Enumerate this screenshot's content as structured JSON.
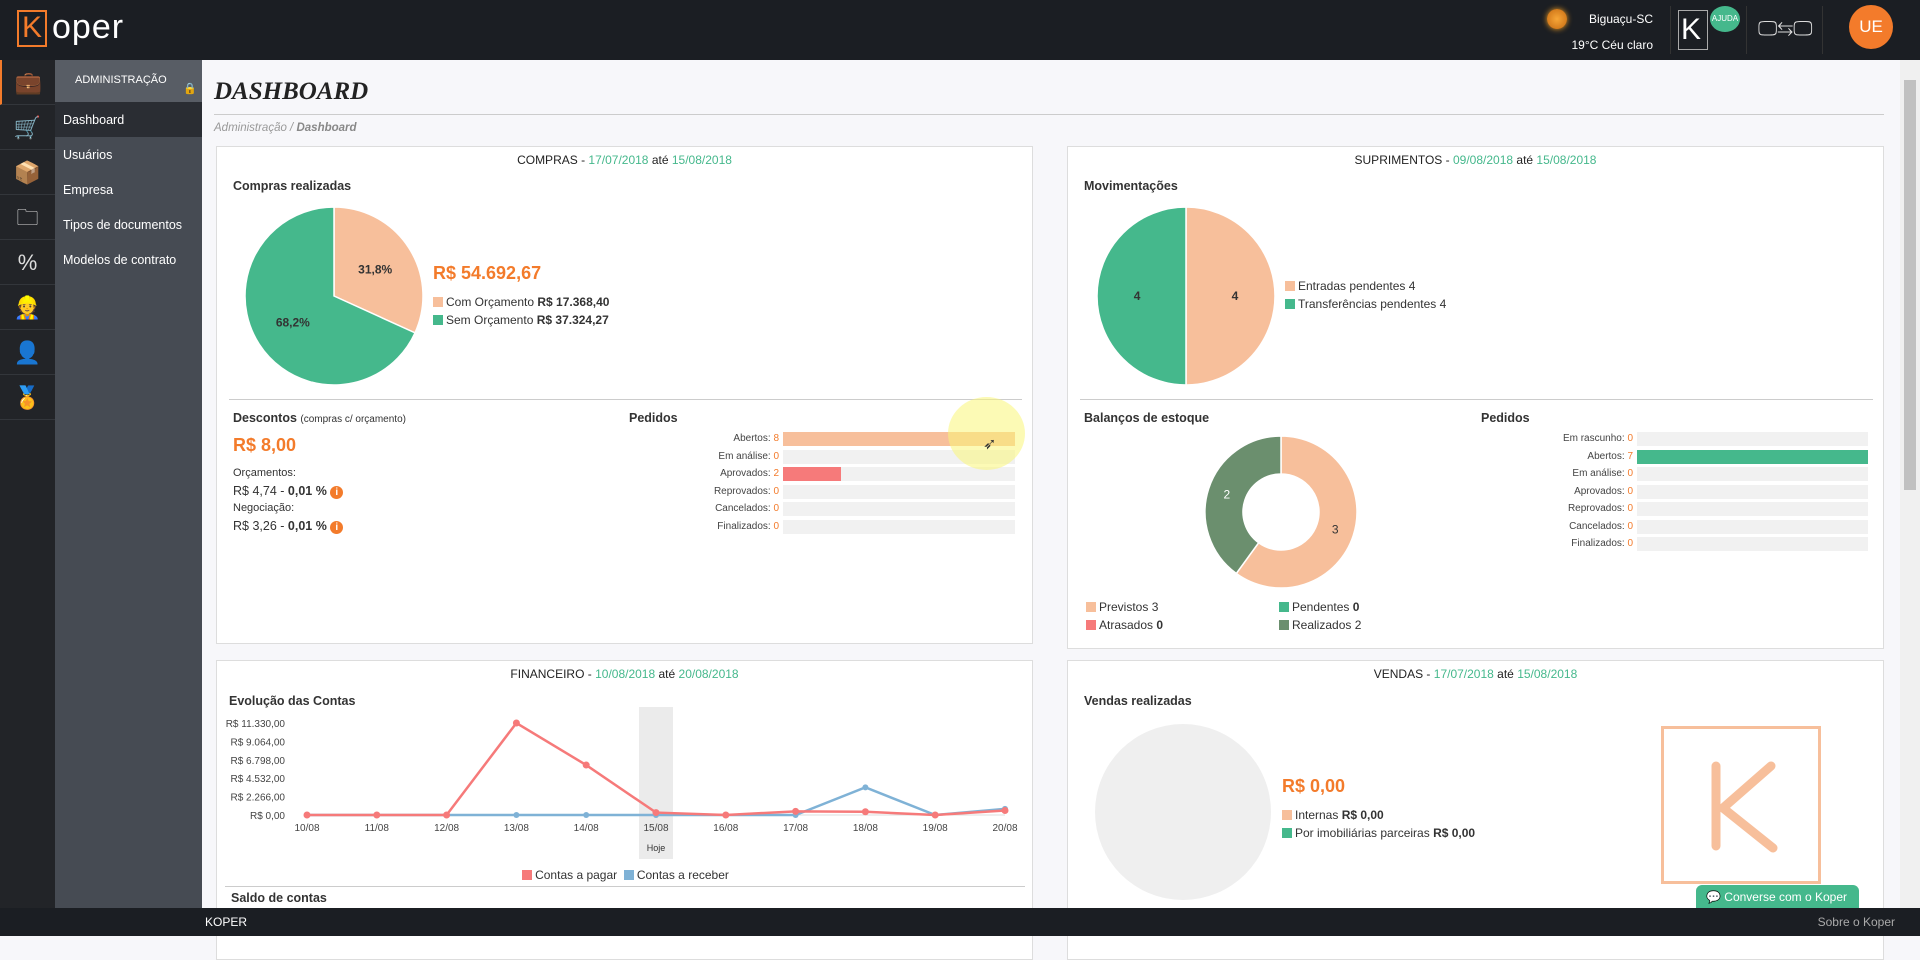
{
  "header": {
    "logo_letter": "K",
    "logo_rest": "oper",
    "city": "Biguaçu-SC",
    "weather": "19°C Céu claro",
    "help_badge": "AJUDA",
    "help_letter": "K",
    "avatar_initials": "UE",
    "icons": [
      "weather-sun-icon",
      "help-icon",
      "screens-icon"
    ]
  },
  "rail": {
    "items": [
      "briefcase-icon",
      "cart-icon",
      "box-icon",
      "folder-money-icon",
      "percent-icon",
      "worker-gear-icon",
      "user-lock-icon",
      "award-ribbon-icon"
    ]
  },
  "submenu": {
    "header": "ADMINISTRAÇÃO",
    "items": [
      {
        "label": "Dashboard",
        "active": true
      },
      {
        "label": "Usuários"
      },
      {
        "label": "Empresa"
      },
      {
        "label": "Tipos de documentos"
      },
      {
        "label": "Modelos de contrato"
      }
    ]
  },
  "page": {
    "title": "DASHBOARD",
    "breadcrumb_parent": "Administração /",
    "breadcrumb_current": "Dashboard"
  },
  "colors": {
    "orange": "#f37b2b",
    "green": "#45b88c",
    "peach": "#f7bf9b",
    "red": "#f67a7a",
    "darkgreen": "#6b8f6e",
    "blue": "#7fb2d6",
    "gray": "#efefef"
  },
  "compras": {
    "title": "COMPRAS -",
    "from": "17/07/2018",
    "ate": "até",
    "to": "15/08/2018",
    "section": "Compras realizadas",
    "total": "R$ 54.692,67",
    "legend": [
      {
        "label": "Com Orçamento",
        "value": "R$ 17.368,40",
        "pct": "31,8%",
        "share": 31.8
      },
      {
        "label": "Sem Orçamento",
        "value": "R$ 37.324,27",
        "pct": "68,2%",
        "share": 68.2
      }
    ],
    "descontos_title": "Descontos",
    "descontos_sub": "(compras c/ orçamento)",
    "descontos_value": "R$ 8,00",
    "orcamentos_label": "Orçamentos:",
    "orcamentos_value": "R$ 4,74 - ",
    "orcamentos_pct": "0,01 %",
    "negociacao_label": "Negociação:",
    "negociacao_value": "R$ 3,26 - ",
    "negociacao_pct": "0,01 %",
    "pedidos_title": "Pedidos",
    "pedidos_max": 8,
    "pedidos": [
      {
        "label": "Abertos:",
        "value": "8",
        "n": 8,
        "color": "#f7bf9b"
      },
      {
        "label": "Em análise:",
        "value": "0",
        "n": 0
      },
      {
        "label": "Aprovados:",
        "value": "2",
        "n": 2,
        "color": "#f67a7a"
      },
      {
        "label": "Reprovados:",
        "value": "0",
        "n": 0
      },
      {
        "label": "Cancelados:",
        "value": "0",
        "n": 0
      },
      {
        "label": "Finalizados:",
        "value": "0",
        "n": 0
      }
    ]
  },
  "suprimentos": {
    "title": "SUPRIMENTOS -",
    "from": "09/08/2018",
    "ate": "até",
    "to": "15/08/2018",
    "section": "Movimentações",
    "legend": [
      {
        "label": "Entradas pendentes",
        "value": "4",
        "n": 4
      },
      {
        "label": "Transferências pendentes",
        "value": "4",
        "n": 4
      }
    ],
    "balancos_title": "Balanços de estoque",
    "balancos": [
      {
        "label": "Previstos",
        "value": "3",
        "n": 3,
        "color": "#f7bf9b"
      },
      {
        "label": "Pendentes",
        "value": "0",
        "n": 0,
        "color": "#45b88c"
      },
      {
        "label": "Atrasados",
        "value": "0",
        "n": 0,
        "color": "#f67a7a"
      },
      {
        "label": "Realizados",
        "value": "2",
        "n": 2,
        "color": "#6b8f6e"
      }
    ],
    "pedidos_title": "Pedidos",
    "pedidos_max": 7,
    "pedidos": [
      {
        "label": "Em rascunho:",
        "value": "0",
        "n": 0
      },
      {
        "label": "Abertos:",
        "value": "7",
        "n": 7,
        "color": "#45b88c"
      },
      {
        "label": "Em análise:",
        "value": "0",
        "n": 0
      },
      {
        "label": "Aprovados:",
        "value": "0",
        "n": 0
      },
      {
        "label": "Reprovados:",
        "value": "0",
        "n": 0
      },
      {
        "label": "Cancelados:",
        "value": "0",
        "n": 0
      },
      {
        "label": "Finalizados:",
        "value": "0",
        "n": 0
      }
    ]
  },
  "financeiro": {
    "title": "FINANCEIRO -",
    "from": "10/08/2018",
    "ate": "até",
    "to": "20/08/2018",
    "section": "Evolução das Contas",
    "today_label": "Hoje",
    "saldo_title": "Saldo de contas"
  },
  "chart_data": {
    "type": "line",
    "x": [
      "10/08",
      "11/08",
      "12/08",
      "13/08",
      "14/08",
      "15/08",
      "16/08",
      "17/08",
      "18/08",
      "19/08",
      "20/08"
    ],
    "yticks": [
      "R$ 0,00",
      "R$ 2.266,00",
      "R$ 4.532,00",
      "R$ 6.798,00",
      "R$ 9.064,00",
      "R$ 11.330,00"
    ],
    "ylim": [
      0,
      11330
    ],
    "highlight": "15/08",
    "legend": "bottom",
    "series": [
      {
        "name": "Contas a pagar",
        "color": "#f67a7a",
        "values": [
          0,
          0,
          0,
          11330,
          6150,
          300,
          0,
          450,
          400,
          0,
          550
        ]
      },
      {
        "name": "Contas a receber",
        "color": "#7fb2d6",
        "values": [
          0,
          0,
          0,
          0,
          0,
          0,
          0,
          0,
          3400,
          0,
          750
        ]
      }
    ]
  },
  "vendas": {
    "title": "VENDAS -",
    "from": "17/07/2018",
    "ate": "até",
    "to": "15/08/2018",
    "section": "Vendas realizadas",
    "total": "R$ 0,00",
    "legend": [
      {
        "label": "Internas",
        "value": "R$ 0,00"
      },
      {
        "label": "Por imobiliárias parceiras",
        "value": "R$ 0,00"
      }
    ]
  },
  "chat": {
    "label": "Converse com o Koper"
  },
  "footer": {
    "brand": "KOPER",
    "about": "Sobre o Koper"
  }
}
